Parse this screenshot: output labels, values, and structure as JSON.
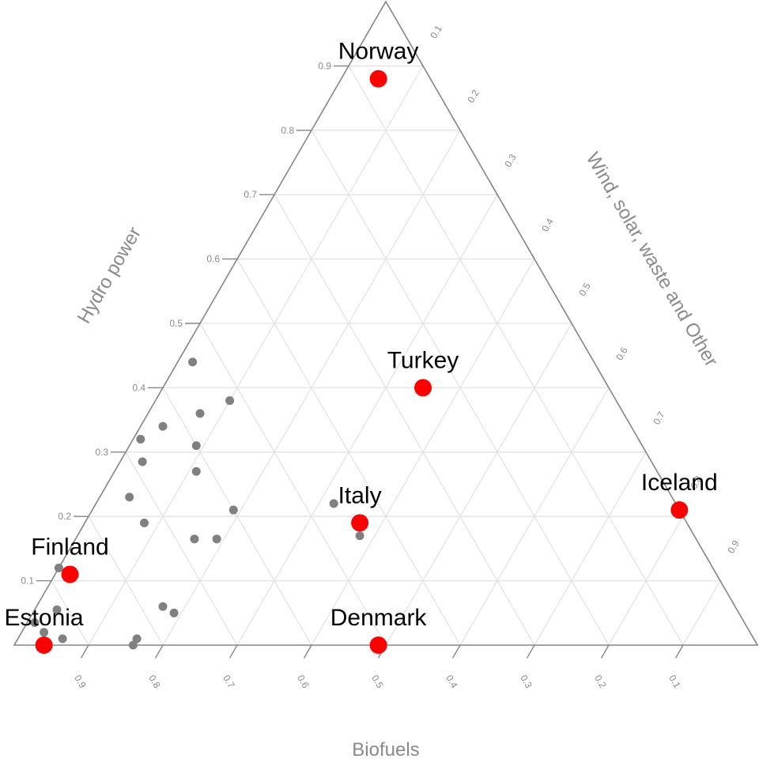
{
  "chart_data": {
    "type": "scatter",
    "subtype": "ternary",
    "axes": {
      "biofuels": {
        "title": "Biofuels",
        "ticks": [
          "0.9",
          "0.8",
          "0.7",
          "0.6",
          "0.5",
          "0.4",
          "0.3",
          "0.2",
          "0.1"
        ]
      },
      "hydro": {
        "title": "Hydro power",
        "ticks": [
          "0.1",
          "0.2",
          "0.3",
          "0.4",
          "0.5",
          "0.6",
          "0.7",
          "0.8",
          "0.9"
        ]
      },
      "wind_other": {
        "title": "Wind, solar, waste and Other",
        "ticks": [
          "0.1",
          "0.2",
          "0.3",
          "0.4",
          "0.5",
          "0.6",
          "0.7",
          "0.8",
          "0.9"
        ]
      }
    },
    "grid": true,
    "highlighted_color": "#ff0000",
    "background_color": "#808080",
    "highlighted": [
      {
        "name": "Norway",
        "hydro": 0.88,
        "wind_other": 0.05,
        "biofuels": 0.07
      },
      {
        "name": "Turkey",
        "hydro": 0.4,
        "wind_other": 0.35,
        "biofuels": 0.25
      },
      {
        "name": "Italy",
        "hydro": 0.19,
        "wind_other": 0.37,
        "biofuels": 0.44
      },
      {
        "name": "Iceland",
        "hydro": 0.21,
        "wind_other": 0.79,
        "biofuels": 0.0
      },
      {
        "name": "Finland",
        "hydro": 0.11,
        "wind_other": 0.02,
        "biofuels": 0.87
      },
      {
        "name": "Estonia",
        "hydro": 0.0,
        "wind_other": 0.04,
        "biofuels": 0.96
      },
      {
        "name": "Denmark",
        "hydro": 0.0,
        "wind_other": 0.49,
        "biofuels": 0.51
      }
    ],
    "others": [
      {
        "hydro": 0.44,
        "wind_other": 0.02,
        "biofuels": 0.54
      },
      {
        "hydro": 0.38,
        "wind_other": 0.1,
        "biofuels": 0.52
      },
      {
        "hydro": 0.36,
        "wind_other": 0.07,
        "biofuels": 0.57
      },
      {
        "hydro": 0.34,
        "wind_other": 0.03,
        "biofuels": 0.63
      },
      {
        "hydro": 0.32,
        "wind_other": 0.01,
        "biofuels": 0.67
      },
      {
        "hydro": 0.31,
        "wind_other": 0.09,
        "biofuels": 0.6
      },
      {
        "hydro": 0.285,
        "wind_other": 0.03,
        "biofuels": 0.685
      },
      {
        "hydro": 0.27,
        "wind_other": 0.11,
        "biofuels": 0.62
      },
      {
        "hydro": 0.23,
        "wind_other": 0.04,
        "biofuels": 0.73
      },
      {
        "hydro": 0.21,
        "wind_other": 0.19,
        "biofuels": 0.6
      },
      {
        "hydro": 0.22,
        "wind_other": 0.32,
        "biofuels": 0.46
      },
      {
        "hydro": 0.19,
        "wind_other": 0.08,
        "biofuels": 0.73
      },
      {
        "hydro": 0.17,
        "wind_other": 0.38,
        "biofuels": 0.45
      },
      {
        "hydro": 0.165,
        "wind_other": 0.16,
        "biofuels": 0.675
      },
      {
        "hydro": 0.165,
        "wind_other": 0.19,
        "biofuels": 0.645
      },
      {
        "hydro": 0.12,
        "wind_other": 0.0,
        "biofuels": 0.88
      },
      {
        "hydro": 0.06,
        "wind_other": 0.17,
        "biofuels": 0.77
      },
      {
        "hydro": 0.05,
        "wind_other": 0.19,
        "biofuels": 0.76
      },
      {
        "hydro": 0.055,
        "wind_other": 0.03,
        "biofuels": 0.915
      },
      {
        "hydro": 0.035,
        "wind_other": 0.01,
        "biofuels": 0.955
      },
      {
        "hydro": 0.02,
        "wind_other": 0.03,
        "biofuels": 0.95
      },
      {
        "hydro": 0.01,
        "wind_other": 0.06,
        "biofuels": 0.93
      },
      {
        "hydro": 0.01,
        "wind_other": 0.16,
        "biofuels": 0.83
      },
      {
        "hydro": 0.0,
        "wind_other": 0.16,
        "biofuels": 0.84
      }
    ]
  }
}
